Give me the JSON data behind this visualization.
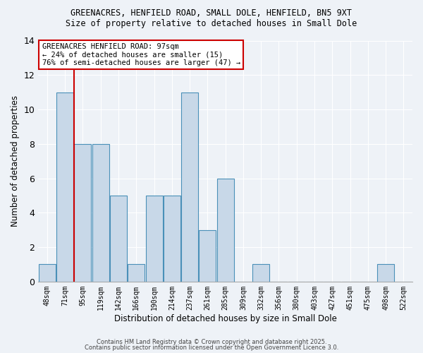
{
  "title1": "GREENACRES, HENFIELD ROAD, SMALL DOLE, HENFIELD, BN5 9XT",
  "title2": "Size of property relative to detached houses in Small Dole",
  "xlabel": "Distribution of detached houses by size in Small Dole",
  "ylabel": "Number of detached properties",
  "bar_labels": [
    "48sqm",
    "71sqm",
    "95sqm",
    "119sqm",
    "142sqm",
    "166sqm",
    "190sqm",
    "214sqm",
    "237sqm",
    "261sqm",
    "285sqm",
    "309sqm",
    "332sqm",
    "356sqm",
    "380sqm",
    "403sqm",
    "427sqm",
    "451sqm",
    "475sqm",
    "498sqm",
    "522sqm"
  ],
  "bar_values": [
    1,
    11,
    8,
    8,
    5,
    1,
    5,
    5,
    11,
    3,
    6,
    0,
    1,
    0,
    0,
    0,
    0,
    0,
    0,
    1,
    0
  ],
  "bar_color": "#c8d8e8",
  "bar_edge_color": "#4a90b8",
  "red_line_index": 2,
  "annotation_title": "GREENACRES HENFIELD ROAD: 97sqm",
  "annotation_line1": "← 24% of detached houses are smaller (15)",
  "annotation_line2": "76% of semi-detached houses are larger (47) →",
  "annotation_box_color": "#ffffff",
  "annotation_edge_color": "#cc0000",
  "ylim": [
    0,
    14
  ],
  "yticks": [
    0,
    2,
    4,
    6,
    8,
    10,
    12,
    14
  ],
  "background_color": "#eef2f7",
  "grid_color": "#ffffff",
  "footer1": "Contains HM Land Registry data © Crown copyright and database right 2025.",
  "footer2": "Contains public sector information licensed under the Open Government Licence 3.0."
}
